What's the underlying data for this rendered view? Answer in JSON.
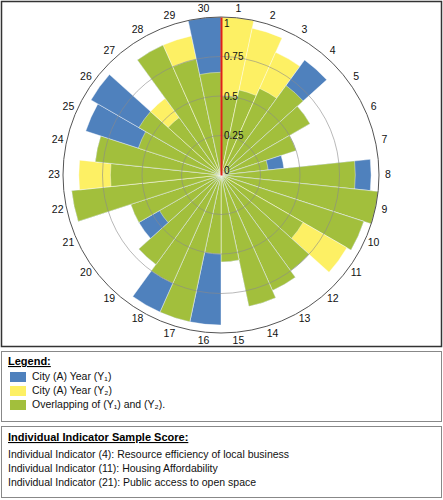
{
  "chart_data": {
    "type": "polar_bar",
    "categories": [
      "1",
      "2",
      "3",
      "4",
      "5",
      "6",
      "7",
      "8",
      "9",
      "10",
      "11",
      "12",
      "13",
      "14",
      "15",
      "16",
      "17",
      "18",
      "19",
      "20",
      "21",
      "22",
      "23",
      "24",
      "25",
      "26",
      "27",
      "28",
      "29",
      "30"
    ],
    "series": [
      {
        "name": "City (A) Year (Y₁)",
        "color": "#4f81bd",
        "values": [
          0.5,
          0.55,
          0.6,
          0.9,
          0.65,
          0.5,
          0.4,
          0.95,
          1,
          0.95,
          0.6,
          0.75,
          0.8,
          0.85,
          0.55,
          0.95,
          0.95,
          0.95,
          0.7,
          0.6,
          0.6,
          0.95,
          0.7,
          0.8,
          0.9,
          0.95,
          0.45,
          0.9,
          0.75,
          1
        ]
      },
      {
        "name": "City (A) Year (Y₂)",
        "color": "#fdf064",
        "values": [
          1,
          0.95,
          0.85,
          0.7,
          0.65,
          0.5,
          0.3,
          0.85,
          1,
          0.95,
          0.92,
          0.75,
          0.8,
          0.85,
          0.55,
          0.5,
          0.95,
          0.75,
          0.7,
          0.45,
          0.6,
          0.95,
          0.9,
          0.8,
          0.55,
          0.6,
          0.6,
          0.9,
          0.9,
          0.65
        ]
      }
    ],
    "overlap": {
      "name": "Overlapping of (Y₁) and (Y₂).",
      "color": "#a2bf3c"
    },
    "ylim": [
      0,
      1
    ],
    "yticks": [
      0,
      0.25,
      0.5,
      0.75,
      1
    ],
    "grid": true,
    "legend_title": "Legend:",
    "annotations": {
      "title": "Individual Indicator Sample Score:",
      "items": [
        "Individual Indicator (4): Resource efficiency of local business",
        "Individual Indicator (11): Housing Affordability",
        "Individual Indicator (21): Public access to open space"
      ]
    }
  }
}
